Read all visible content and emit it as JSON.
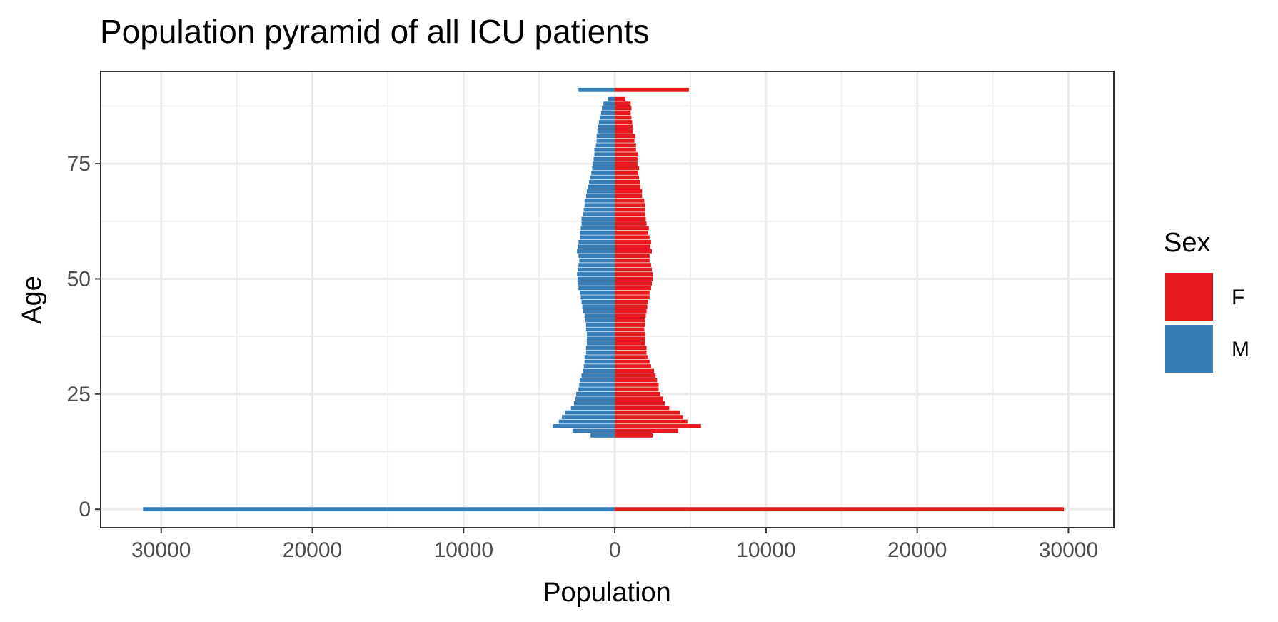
{
  "chart_data": {
    "type": "bar",
    "orientation": "horizontal",
    "title": "Population pyramid of all ICU patients",
    "xlabel": "Population",
    "ylabel": "Age",
    "xlim": [
      -34000,
      33000
    ],
    "ylim": [
      -4,
      95
    ],
    "x_ticks": [
      -30000,
      -20000,
      -10000,
      0,
      10000,
      20000,
      30000
    ],
    "x_tick_labels": [
      "30000",
      "20000",
      "10000",
      "0",
      "10000",
      "20000",
      "30000"
    ],
    "y_ticks": [
      0,
      25,
      50,
      75
    ],
    "y_tick_labels": [
      "0",
      "25",
      "50",
      "75"
    ],
    "grid": true,
    "legend": {
      "title": "Sex",
      "placement": "right",
      "entries": [
        {
          "label": "F",
          "color": "#e41a1c"
        },
        {
          "label": "M",
          "color": "#377eb8"
        }
      ]
    },
    "ages": [
      0,
      16,
      17,
      18,
      19,
      20,
      21,
      22,
      23,
      24,
      25,
      26,
      27,
      28,
      29,
      30,
      31,
      32,
      33,
      34,
      35,
      36,
      37,
      38,
      39,
      40,
      41,
      42,
      43,
      44,
      45,
      46,
      47,
      48,
      49,
      50,
      51,
      52,
      53,
      54,
      55,
      56,
      57,
      58,
      59,
      60,
      61,
      62,
      63,
      64,
      65,
      66,
      67,
      68,
      69,
      70,
      71,
      72,
      73,
      74,
      75,
      76,
      77,
      78,
      79,
      80,
      81,
      82,
      83,
      84,
      85,
      86,
      87,
      88,
      89,
      91
    ],
    "series": [
      {
        "name": "F",
        "color": "#e41a1c",
        "values": [
          29700,
          2500,
          4200,
          5700,
          4800,
          4500,
          4300,
          3600,
          3300,
          3200,
          3000,
          2900,
          2900,
          2800,
          2700,
          2600,
          2400,
          2300,
          2200,
          2100,
          2100,
          2000,
          2000,
          2000,
          1950,
          2000,
          2000,
          2050,
          2100,
          2150,
          2200,
          2300,
          2300,
          2400,
          2450,
          2500,
          2500,
          2450,
          2400,
          2300,
          2300,
          2450,
          2350,
          2400,
          2300,
          2200,
          2250,
          2100,
          2050,
          2000,
          2000,
          2000,
          1950,
          1800,
          1800,
          1700,
          1650,
          1600,
          1550,
          1600,
          1500,
          1500,
          1550,
          1400,
          1400,
          1300,
          1350,
          1200,
          1200,
          1150,
          1100,
          1050,
          1100,
          1050,
          700,
          4900
        ],
        "neg": false
      },
      {
        "name": "M",
        "color": "#377eb8",
        "values": [
          31200,
          1600,
          2800,
          4100,
          3700,
          3500,
          3300,
          2900,
          2700,
          2600,
          2550,
          2400,
          2350,
          2300,
          2200,
          2100,
          2050,
          2000,
          2000,
          1900,
          1900,
          1850,
          1850,
          1850,
          1900,
          1900,
          1950,
          2000,
          2100,
          2150,
          2200,
          2250,
          2300,
          2400,
          2450,
          2450,
          2500,
          2450,
          2400,
          2350,
          2400,
          2500,
          2450,
          2400,
          2300,
          2300,
          2250,
          2200,
          2200,
          2100,
          2050,
          2000,
          2000,
          1900,
          1850,
          1800,
          1700,
          1650,
          1550,
          1500,
          1450,
          1400,
          1350,
          1350,
          1250,
          1200,
          1200,
          1150,
          1100,
          1050,
          1000,
          900,
          850,
          750,
          450,
          2400
        ],
        "neg": true
      }
    ]
  }
}
